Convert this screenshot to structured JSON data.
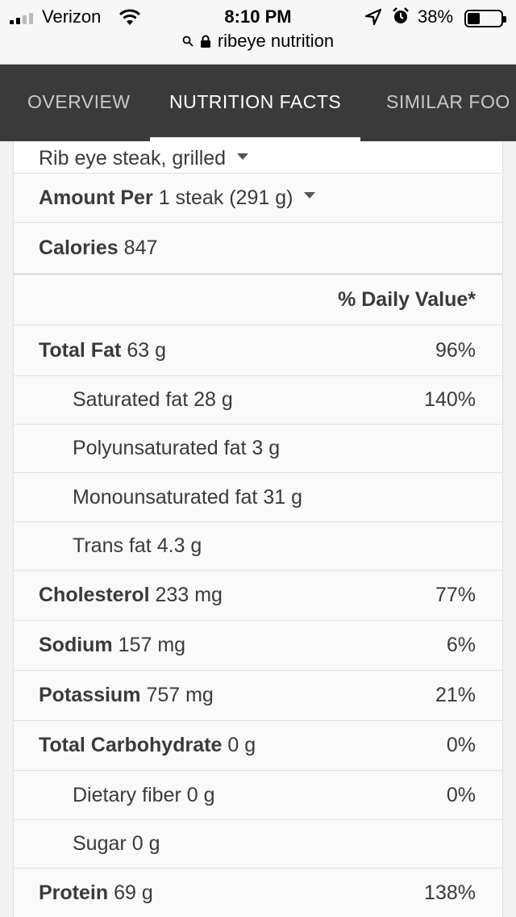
{
  "status_bar": {
    "carrier": "Verizon",
    "time": "8:10 PM",
    "battery_percent": "38%",
    "battery_level": 0.38,
    "icons": [
      "signal-icon",
      "wifi-icon",
      "location-icon",
      "alarm-icon",
      "battery-icon"
    ]
  },
  "browser": {
    "url": "ribeye nutrition",
    "icons": [
      "search-icon",
      "lock-icon"
    ]
  },
  "tabs": [
    {
      "label": "OVERVIEW",
      "active": false
    },
    {
      "label": "NUTRITION FACTS",
      "active": true
    },
    {
      "label": "SIMILAR FOO",
      "active": false
    }
  ],
  "food_select": {
    "value": "Rib eye steak, grilled"
  },
  "amount": {
    "label": "Amount Per",
    "value": "1 steak (291 g)"
  },
  "calories": {
    "label": "Calories",
    "value": "847"
  },
  "daily_value_header": "% Daily Value*",
  "nutrients": [
    {
      "name": "Total Fat",
      "amount": "63 g",
      "dv": "96%",
      "bold": true
    },
    {
      "name": "Saturated fat",
      "amount": "28 g",
      "dv": "140%",
      "bold": false
    },
    {
      "name": "Polyunsaturated fat",
      "amount": "3 g",
      "dv": "",
      "bold": false
    },
    {
      "name": "Monounsaturated fat",
      "amount": "31 g",
      "dv": "",
      "bold": false
    },
    {
      "name": "Trans fat",
      "amount": "4.3 g",
      "dv": "",
      "bold": false
    },
    {
      "name": "Cholesterol",
      "amount": "233 mg",
      "dv": "77%",
      "bold": true
    },
    {
      "name": "Sodium",
      "amount": "157 mg",
      "dv": "6%",
      "bold": true
    },
    {
      "name": "Potassium",
      "amount": "757 mg",
      "dv": "21%",
      "bold": true
    },
    {
      "name": "Total Carbohydrate",
      "amount": "0 g",
      "dv": "0%",
      "bold": true
    },
    {
      "name": "Dietary fiber",
      "amount": "0 g",
      "dv": "0%",
      "bold": false
    },
    {
      "name": "Sugar",
      "amount": "0 g",
      "dv": "",
      "bold": false
    },
    {
      "name": "Protein",
      "amount": "69 g",
      "dv": "138%",
      "bold": true
    }
  ]
}
